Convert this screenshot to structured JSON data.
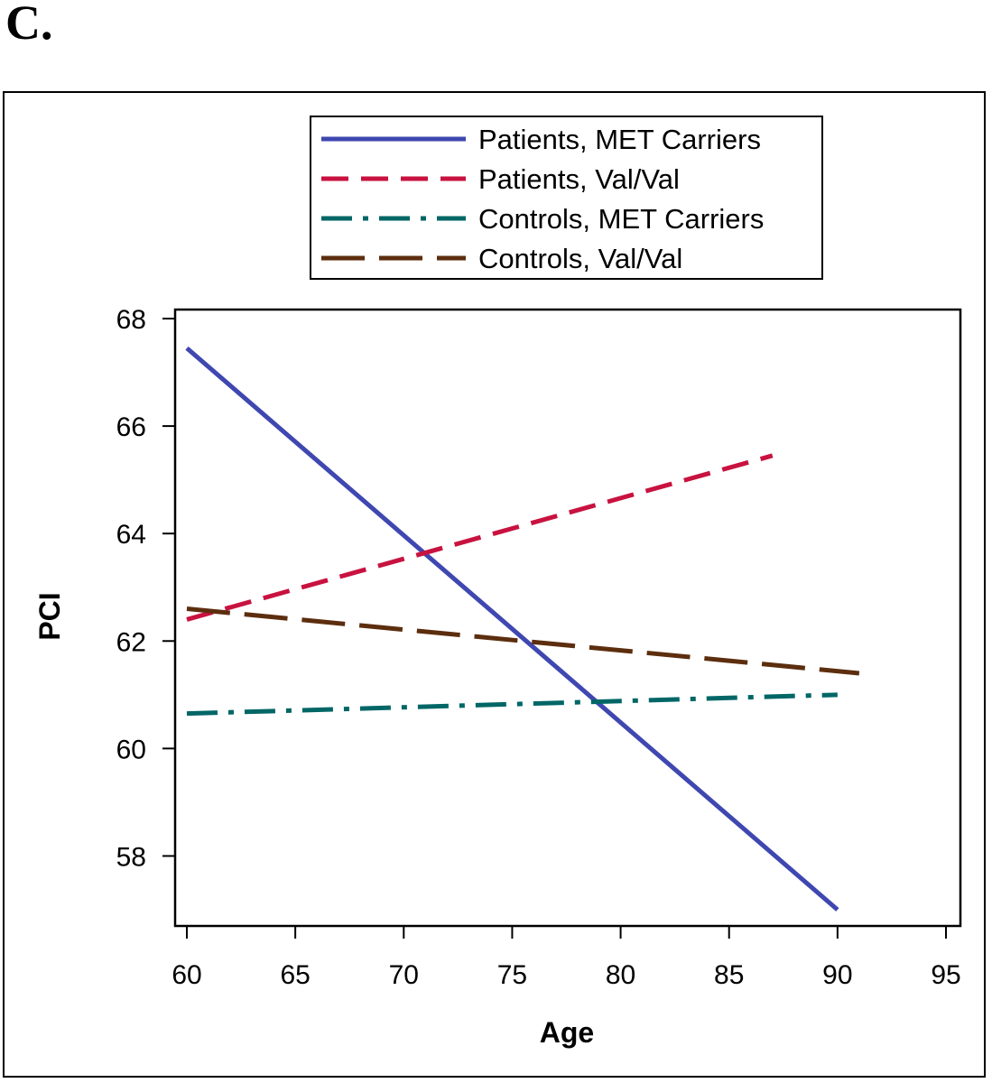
{
  "panel_label": "C.",
  "chart_data": {
    "type": "line",
    "title": "",
    "xlabel": "Age",
    "ylabel": "PCI",
    "xlim": [
      60,
      95
    ],
    "ylim": [
      57,
      68
    ],
    "xticks": [
      60,
      65,
      70,
      75,
      80,
      85,
      90,
      95
    ],
    "yticks": [
      58,
      60,
      62,
      64,
      66,
      68
    ],
    "grid": false,
    "legend_position": "top",
    "series": [
      {
        "name": "Patients, MET Carriers",
        "color": "#3f47b0",
        "style": "solid",
        "x": [
          60,
          90
        ],
        "y": [
          67.45,
          57.0
        ]
      },
      {
        "name": "Patients, Val/Val",
        "color": "#c8123f",
        "style": "dash",
        "x": [
          60,
          87
        ],
        "y": [
          62.4,
          65.45
        ]
      },
      {
        "name": "Controls, MET Carriers",
        "color": "#006666",
        "style": "dashdot",
        "x": [
          60,
          90
        ],
        "y": [
          60.65,
          61.0
        ]
      },
      {
        "name": "Controls, Val/Val",
        "color": "#5c2e0e",
        "style": "longdash",
        "x": [
          60,
          91
        ],
        "y": [
          62.6,
          61.4
        ]
      }
    ]
  }
}
